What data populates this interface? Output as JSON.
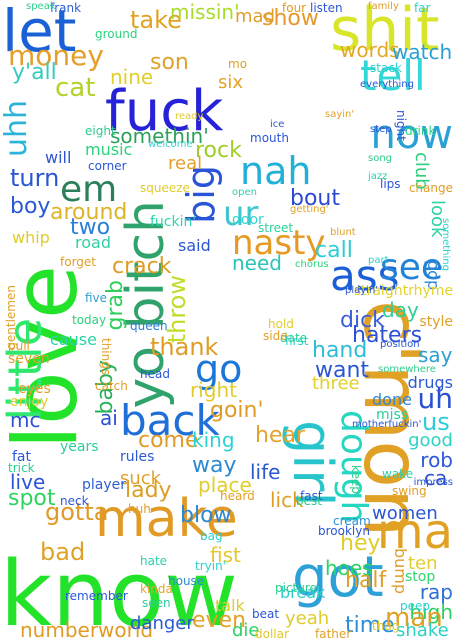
{
  "cloud": {
    "words": [
      {
        "text": "know",
        "color": "#22e32a"
      },
      {
        "text": "love",
        "color": "#22e32a"
      },
      {
        "text": "shit",
        "color": "#d7e62b"
      },
      {
        "text": "fuck",
        "color": "#2622d7"
      },
      {
        "text": "yo bitch",
        "color": "#2fa36b"
      },
      {
        "text": "c'mon",
        "color": "#e1a124"
      },
      {
        "text": "make",
        "color": "#e09a25"
      },
      {
        "text": "let",
        "color": "#1a61d6"
      },
      {
        "text": "little",
        "color": "#2ee86d"
      },
      {
        "text": "got",
        "color": "#2ca1d8"
      },
      {
        "text": "back",
        "color": "#1f6fd8"
      },
      {
        "text": "ass",
        "color": "#1b5ed6"
      },
      {
        "text": "nasty",
        "color": "#e49a23"
      },
      {
        "text": "ma",
        "color": "#e1a124"
      },
      {
        "text": "girl",
        "color": "#28c4cc"
      },
      {
        "text": "dough",
        "color": "#25d6c1"
      },
      {
        "text": "big",
        "color": "#2b53d8"
      },
      {
        "text": "tell",
        "color": "#32d7d8"
      },
      {
        "text": "now",
        "color": "#29a1d5"
      },
      {
        "text": "nah",
        "color": "#21b0d6"
      },
      {
        "text": "em",
        "color": "#2d7f5c"
      },
      {
        "text": "go",
        "color": "#1b77d6"
      },
      {
        "text": "see",
        "color": "#2283d8"
      },
      {
        "text": "ur",
        "color": "#3fc6cf"
      },
      {
        "text": "money",
        "color": "#e59e2b"
      },
      {
        "text": "uhh",
        "color": "#2cb4d8"
      },
      {
        "text": "take",
        "color": "#e0a321"
      },
      {
        "text": "show",
        "color": "#e6982b"
      },
      {
        "text": "missin'",
        "color": "#a9dc2a"
      },
      {
        "text": "mad",
        "color": "#dfa02a"
      },
      {
        "text": "words",
        "color": "#e3a727"
      },
      {
        "text": "watch",
        "color": "#2a9fd6"
      },
      {
        "text": "cat",
        "color": "#b0d32a"
      },
      {
        "text": "son",
        "color": "#dfa12b"
      },
      {
        "text": "nine",
        "color": "#e1d029"
      },
      {
        "text": "six",
        "color": "#e3a124"
      },
      {
        "text": "y'all",
        "color": "#35ccbf"
      },
      {
        "text": "rock",
        "color": "#a1cc2a"
      },
      {
        "text": "somethin'",
        "color": "#2ea05a"
      },
      {
        "text": "turn",
        "color": "#2a56d1"
      },
      {
        "text": "boy",
        "color": "#2a59d3"
      },
      {
        "text": "around",
        "color": "#ddb329"
      },
      {
        "text": "two",
        "color": "#2a80d6"
      },
      {
        "text": "crack",
        "color": "#de9c22"
      },
      {
        "text": "need",
        "color": "#2bc4b8"
      },
      {
        "text": "call",
        "color": "#2bcdd6"
      },
      {
        "text": "bout",
        "color": "#2c49d4"
      },
      {
        "text": "day",
        "color": "#30ce9a"
      },
      {
        "text": "dick",
        "color": "#3b5fd8"
      },
      {
        "text": "real",
        "color": "#e5a02a"
      },
      {
        "text": "thank",
        "color": "#df9d25"
      },
      {
        "text": "throw",
        "color": "#c2dc2b"
      },
      {
        "text": "grab",
        "color": "#2ecf5d"
      },
      {
        "text": "baby",
        "color": "#2bb05c"
      },
      {
        "text": "haters",
        "color": "#2c51d5"
      },
      {
        "text": "say",
        "color": "#2b9fd6"
      },
      {
        "text": "hand",
        "color": "#2cbed7"
      },
      {
        "text": "want",
        "color": "#2b55d2"
      },
      {
        "text": "right",
        "color": "#e3cb2c"
      },
      {
        "text": "goin'",
        "color": "#e09b25"
      },
      {
        "text": "three",
        "color": "#e2d12a"
      },
      {
        "text": "uh",
        "color": "#2a50d2"
      },
      {
        "text": "us",
        "color": "#2acdd9"
      },
      {
        "text": "ai",
        "color": "#2b4fd6"
      },
      {
        "text": "come",
        "color": "#e09a26"
      },
      {
        "text": "king",
        "color": "#2ad3d3"
      },
      {
        "text": "hear",
        "color": "#e4a42a"
      },
      {
        "text": "way",
        "color": "#2b8ad4"
      },
      {
        "text": "life",
        "color": "#2a58d3"
      },
      {
        "text": "lady",
        "color": "#de9c25"
      },
      {
        "text": "place",
        "color": "#e2cd29"
      },
      {
        "text": "suck",
        "color": "#e0a12b"
      },
      {
        "text": "lick",
        "color": "#dfa024"
      },
      {
        "text": "gotta",
        "color": "#e09b26"
      },
      {
        "text": "spot",
        "color": "#2cd45f"
      },
      {
        "text": "live",
        "color": "#2c54d7"
      },
      {
        "text": "blow",
        "color": "#2b89d6"
      },
      {
        "text": "hoes",
        "color": "#2bd461"
      },
      {
        "text": "hey",
        "color": "#e0cc2a"
      },
      {
        "text": "bad",
        "color": "#dfa227"
      },
      {
        "text": "even",
        "color": "#e4a225"
      },
      {
        "text": "time",
        "color": "#2d8ed7"
      },
      {
        "text": "yeah",
        "color": "#dfcd2a"
      },
      {
        "text": "half",
        "color": "#dfa025"
      },
      {
        "text": "rap",
        "color": "#2c6fd6"
      },
      {
        "text": "high",
        "color": "#2dd166"
      },
      {
        "text": "man",
        "color": "#dfa023"
      },
      {
        "text": "shake",
        "color": "#2cd0c3"
      },
      {
        "text": "numberworld",
        "color": "#e09b25"
      },
      {
        "text": "danger",
        "color": "#2a5dd4"
      },
      {
        "text": "die",
        "color": "#2dd164"
      },
      {
        "text": "fist",
        "color": "#e4c82d"
      },
      {
        "text": "women",
        "color": "#2b57d3"
      },
      {
        "text": "good",
        "color": "#2bd4c5"
      },
      {
        "text": "mc",
        "color": "#2a52d4"
      },
      {
        "text": "rob",
        "color": "#2c58d6"
      },
      {
        "text": "ca",
        "color": "#2b53d2"
      },
      {
        "text": "done",
        "color": "#2f89d6"
      },
      {
        "text": "miss",
        "color": "#2bce9b"
      },
      {
        "text": "club",
        "color": "#2bd17b"
      },
      {
        "text": "look",
        "color": "#2ed3a6"
      },
      {
        "text": "style",
        "color": "#e29f26"
      },
      {
        "text": "drugs",
        "color": "#2d5ad5"
      },
      {
        "text": "ten",
        "color": "#e2cf29"
      },
      {
        "text": "stop",
        "color": "#2bd86e"
      },
      {
        "text": "bump",
        "color": "#e09e25"
      },
      {
        "text": "pop",
        "color": "#2c86d6"
      },
      {
        "text": "break",
        "color": "#2ccfcf"
      },
      {
        "text": "talk",
        "color": "#d8cf2b"
      },
      {
        "text": "cause",
        "color": "#2bd3a8"
      },
      {
        "text": "music",
        "color": "#2bd37b"
      },
      {
        "text": "will",
        "color": "#2f55d4"
      },
      {
        "text": "whip",
        "color": "#e2cb29"
      },
      {
        "text": "road",
        "color": "#2fd0a4"
      },
      {
        "text": "queen",
        "color": "#2a7ed6"
      },
      {
        "text": "door",
        "color": "#2fd3d3"
      },
      {
        "text": "fuckin'",
        "color": "#2cd5ae"
      },
      {
        "text": "said",
        "color": "#2a57d3"
      },
      {
        "text": "straightrhyme",
        "color": "#e3d229"
      },
      {
        "text": "seven",
        "color": "#e0a025"
      },
      {
        "text": "eyes",
        "color": "#e29e2a"
      },
      {
        "text": "enjoy",
        "color": "#e2cc2c"
      },
      {
        "text": "rules",
        "color": "#2c5ad3"
      },
      {
        "text": "years",
        "color": "#2bcf9c"
      },
      {
        "text": "player",
        "color": "#2c60d3"
      },
      {
        "text": "huh",
        "color": "#e3a228"
      },
      {
        "text": "brooklyn",
        "color": "#2a55d5"
      },
      {
        "text": "best",
        "color": "#2acd8a"
      },
      {
        "text": "wake",
        "color": "#2bd0b0"
      },
      {
        "text": "ground",
        "color": "#2bd380"
      },
      {
        "text": "gentlemen",
        "color": "#e0a026"
      },
      {
        "text": "frank",
        "color": "#2c5fd3"
      },
      {
        "text": "remember",
        "color": "#2c59d3"
      },
      {
        "text": "kinda",
        "color": "#e2a62b"
      },
      {
        "text": "house",
        "color": "#2c8cd4"
      },
      {
        "text": "tryin'",
        "color": "#2bcfd0"
      },
      {
        "text": "dollar",
        "color": "#dfc92a"
      },
      {
        "text": "father",
        "color": "#e1a127"
      },
      {
        "text": "street",
        "color": "#2dd09c"
      },
      {
        "text": "mouth",
        "color": "#2c55d4"
      },
      {
        "text": "chorus",
        "color": "#2ad07c"
      },
      {
        "text": "mo",
        "color": "#d9a22a"
      },
      {
        "text": "welcome",
        "color": "#2fd3cf"
      },
      {
        "text": "squeeze",
        "color": "#e0cd2b"
      },
      {
        "text": "corner",
        "color": "#2c57d5"
      },
      {
        "text": "eight",
        "color": "#2ccc8a"
      },
      {
        "text": "stack",
        "color": "#2cd1cd"
      },
      {
        "text": "drink",
        "color": "#2cd38a"
      },
      {
        "text": "change",
        "color": "#e09d25"
      },
      {
        "text": "lips",
        "color": "#2a55d6"
      },
      {
        "text": "night",
        "color": "#2c56d5"
      },
      {
        "text": "cream",
        "color": "#2c90d5"
      },
      {
        "text": "date",
        "color": "#2bd28a"
      },
      {
        "text": "hold",
        "color": "#e2cb28"
      },
      {
        "text": "side",
        "color": "#e1a027"
      },
      {
        "text": "first",
        "color": "#2ad0c9"
      },
      {
        "text": "impress",
        "color": "#2c57d4"
      },
      {
        "text": "swing",
        "color": "#e19d26"
      },
      {
        "text": "keep",
        "color": "#2bcf8a"
      },
      {
        "text": "thug",
        "color": "#e0c92b"
      },
      {
        "text": "peep",
        "color": "#2cd1d0"
      },
      {
        "text": "picture",
        "color": "#2bcd8a"
      },
      {
        "text": "beat",
        "color": "#2c57d4"
      },
      {
        "text": "seen",
        "color": "#2bcf9a"
      },
      {
        "text": "catch",
        "color": "#e1a127"
      },
      {
        "text": "head",
        "color": "#2c57d6"
      },
      {
        "text": "five",
        "color": "#2c9fd4"
      },
      {
        "text": "forget",
        "color": "#e0a026"
      },
      {
        "text": "today",
        "color": "#2bd07a"
      },
      {
        "text": "things",
        "color": "#e2a12a"
      },
      {
        "text": "pull",
        "color": "#e19d26"
      },
      {
        "text": "neck",
        "color": "#2c58d5"
      },
      {
        "text": "hate",
        "color": "#2bd0ad"
      },
      {
        "text": "fat",
        "color": "#2c57d6"
      },
      {
        "text": "trick",
        "color": "#2bce8e"
      },
      {
        "text": "heard",
        "color": "#e1a027"
      },
      {
        "text": "bag",
        "color": "#2bcfd0"
      },
      {
        "text": "fast",
        "color": "#2c58d6"
      },
      {
        "text": "four",
        "color": "#e09b26"
      },
      {
        "text": "listen",
        "color": "#2c57d4"
      },
      {
        "text": "family",
        "color": "#e1a026"
      },
      {
        "text": "far",
        "color": "#2cd1cd"
      },
      {
        "text": "speak",
        "color": "#2bcf8a"
      },
      {
        "text": "everything",
        "color": "#2c57d5"
      },
      {
        "text": "ready",
        "color": "#e2cb2a"
      },
      {
        "text": "open",
        "color": "#2bd0ad"
      },
      {
        "text": "ice",
        "color": "#2c57d4"
      },
      {
        "text": "blunt",
        "color": "#e0a026"
      },
      {
        "text": "part",
        "color": "#2cd1ce"
      },
      {
        "text": "getting'",
        "color": "#e1a027"
      },
      {
        "text": "playin'",
        "color": "#2c57d5"
      },
      {
        "text": "somewhere",
        "color": "#2bcf8a"
      },
      {
        "text": "position",
        "color": "#2c57d4"
      },
      {
        "text": "motherfuckin'",
        "color": "#2c57d6"
      },
      {
        "text": "sayin'",
        "color": "#e1a026"
      },
      {
        "text": "jazz",
        "color": "#2bd0ad"
      },
      {
        "text": "song",
        "color": "#2bcf8a"
      },
      {
        "text": "step",
        "color": "#2c57d4"
      },
      {
        "text": "something",
        "color": "#2cd1cd"
      }
    ]
  }
}
